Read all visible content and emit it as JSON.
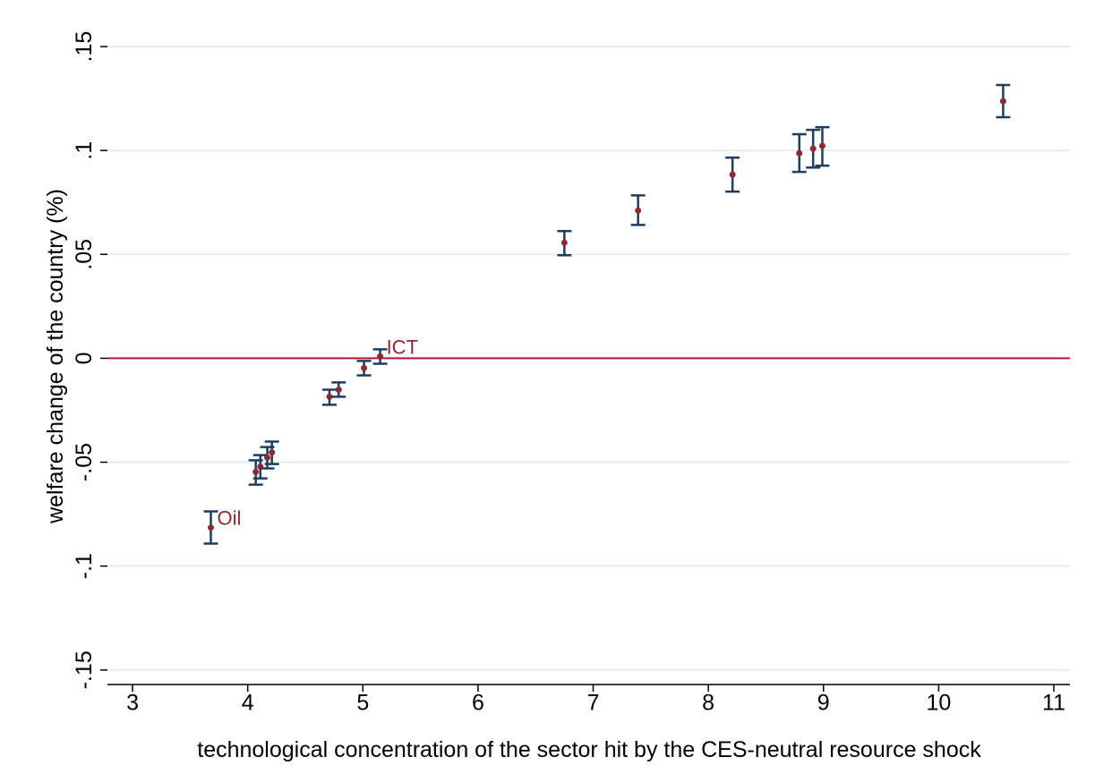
{
  "chart_data": {
    "type": "errorbar-scatter",
    "x_label": "technological concentration of the sector hit by the CES-neutral resource shock",
    "y_label": "welfare change of the country (%)",
    "xlim": [
      2.782,
      11.14
    ],
    "ylim": [
      -0.157,
      0.1595
    ],
    "xticks": [
      3,
      4,
      5,
      6,
      7,
      8,
      9,
      10,
      11
    ],
    "yticks": [
      {
        "value": -0.15,
        "label": "-.15"
      },
      {
        "value": -0.1,
        "label": "-.1"
      },
      {
        "value": -0.05,
        "label": "-.05"
      },
      0,
      {
        "value": 0.05,
        "label": ".05"
      },
      {
        "value": 0.1,
        "label": ".1"
      },
      {
        "value": 0.15,
        "label": ".15"
      }
    ],
    "grid": true,
    "hline": 0,
    "hline_color": "#b5173b",
    "point_color": "#8b2a35",
    "errorbar_color": "#1f3d5c",
    "label_color": "#8b2a35",
    "x": [
      3.68,
      4.07,
      4.11,
      4.17,
      4.21,
      4.71,
      4.79,
      5.01,
      5.15,
      6.75,
      7.39,
      8.21,
      8.79,
      8.91,
      8.99,
      10.56
    ],
    "values": [
      -0.0815,
      -0.0547,
      -0.0522,
      -0.0478,
      -0.0453,
      -0.0185,
      -0.0151,
      -0.0047,
      0.0009,
      0.0556,
      0.0711,
      0.0884,
      0.0987,
      0.1009,
      0.1022,
      0.1237
    ],
    "lower": [
      -0.0892,
      -0.0608,
      -0.0578,
      -0.053,
      -0.0509,
      -0.0224,
      -0.0185,
      -0.0082,
      -0.0026,
      0.0496,
      0.0642,
      0.0802,
      0.0897,
      0.0918,
      0.0927,
      0.116
    ],
    "upper": [
      -0.0737,
      -0.0491,
      -0.0466,
      -0.0427,
      -0.0401,
      -0.0151,
      -0.0116,
      -0.0013,
      0.0043,
      0.0612,
      0.0784,
      0.0966,
      0.1078,
      0.1099,
      0.1112,
      0.1315
    ],
    "point_labels": [
      "Oil",
      null,
      null,
      null,
      null,
      null,
      null,
      null,
      "ICT",
      null,
      null,
      null,
      null,
      null,
      null,
      null
    ]
  }
}
